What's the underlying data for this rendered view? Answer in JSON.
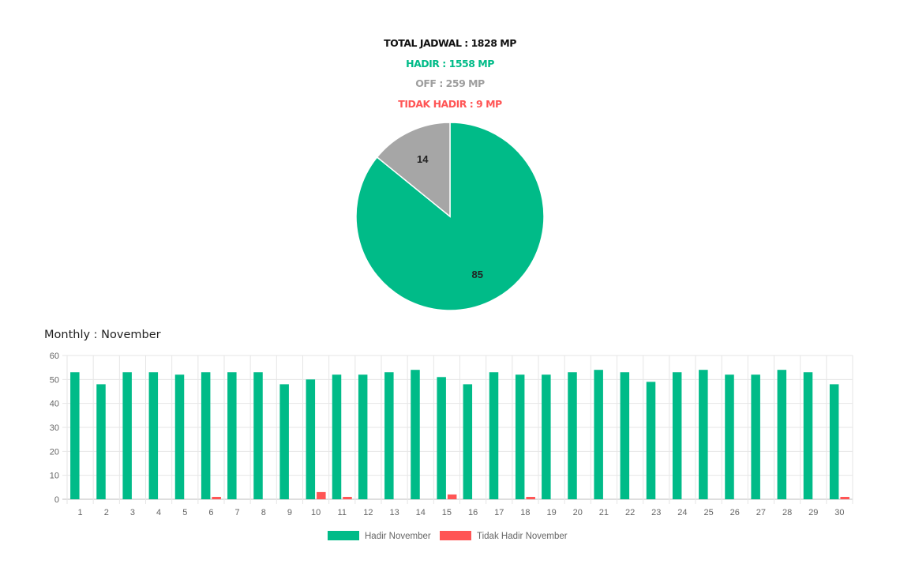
{
  "summary": {
    "total": "TOTAL JADWAL : 1828 MP",
    "hadir": "HADIR : 1558 MP",
    "off": "OFF : 259 MP",
    "tidak_hadir": "TIDAK HADIR : 9 MP"
  },
  "colors": {
    "total": "#111111",
    "hadir": "#00bb88",
    "off": "#9e9e9e",
    "tidak_hadir": "#ff5555",
    "axis_text": "#666666",
    "grid": "#e6e6e6"
  },
  "monthly_title": "Monthly : November",
  "chart_data": [
    {
      "type": "pie",
      "slices": [
        {
          "value": 85,
          "label": "85",
          "color": "#00bb88"
        },
        {
          "value": 14,
          "label": "14",
          "color": "#a6a6a6"
        }
      ]
    },
    {
      "type": "bar",
      "categories": [
        "1",
        "2",
        "3",
        "4",
        "5",
        "6",
        "7",
        "8",
        "9",
        "10",
        "11",
        "12",
        "13",
        "14",
        "15",
        "16",
        "17",
        "18",
        "19",
        "20",
        "21",
        "22",
        "23",
        "24",
        "25",
        "26",
        "27",
        "28",
        "29",
        "30"
      ],
      "series": [
        {
          "name": "Hadir November",
          "color": "#00bb88",
          "values": [
            53,
            48,
            53,
            53,
            52,
            53,
            53,
            53,
            48,
            50,
            52,
            52,
            53,
            54,
            51,
            48,
            53,
            52,
            52,
            53,
            54,
            53,
            49,
            53,
            54,
            52,
            52,
            54,
            53,
            48
          ]
        },
        {
          "name": "Tidak Hadir November",
          "color": "#ff5555",
          "values": [
            0,
            0,
            0,
            0,
            0,
            1,
            0,
            0,
            0,
            3,
            1,
            0,
            0,
            0,
            2,
            0,
            0,
            1,
            0,
            0,
            0,
            0,
            0,
            0,
            0,
            0,
            0,
            0,
            0,
            1
          ]
        }
      ],
      "ylim": [
        0,
        60
      ],
      "yticks": [
        0,
        10,
        20,
        30,
        40,
        50,
        60
      ],
      "grid": true,
      "legend": "bottom-center"
    }
  ]
}
